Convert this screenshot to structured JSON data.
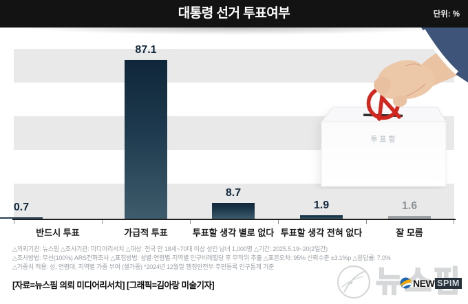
{
  "header": {
    "title": "대통령 선거 투표여부",
    "unit_label": "단위: %"
  },
  "chart_data": {
    "type": "bar",
    "title": "대통령 선거 투표여부",
    "unit": "%",
    "categories": [
      "반드시 투표",
      "가급적 투표",
      "투표할 생각 별로 없다",
      "투표할 생각 전혀 없다",
      "잘 모름"
    ],
    "values": [
      87.1,
      8.7,
      1.9,
      1.6,
      0.7
    ],
    "ylim": [
      0,
      100
    ],
    "grid": "horizontal-band-stripes-20pct",
    "legend_position": "none",
    "bar_colors": {
      "default_top": "#10263a",
      "default_bottom": "#3f5c6c",
      "muted_last_bar": "#9aa0a4"
    }
  },
  "illustration": {
    "ballot_box_label": "투표함",
    "stamp_color": "#d1271e",
    "sleeve_color": "#3e5478",
    "skin_color": "#ecc7a8"
  },
  "footnotes": {
    "lines": [
      "△의뢰기관: 뉴스핌  △조사기관: 미디어리서치  △대상: 전국 만 18세~70대 이상 성인 남녀 1,000명  △기간: 2025.5.19~20(2일간)",
      "△조사방법: 무선(100%) ARS전화조사  △표집방법: 성별·연령별·지역별 인구비례할당 후 무작위 추출  △표본오차: 95% 신뢰수준 ±3.1%p  △응답률: 7.0%",
      "△가중치 적용: 성, 연령대, 지역별 가중 부여 (셀가중) *2024년 12월말 행정안전부 주민등록 인구통계 기준"
    ]
  },
  "source_line": "[자료=뉴스핌 의뢰 미디어리서치] [그래픽=김아랑 미술기자]",
  "logo": {
    "watermark_text": "뉴스핌",
    "brand_prefix": "NEW",
    "brand_suffix": "SPIM"
  }
}
